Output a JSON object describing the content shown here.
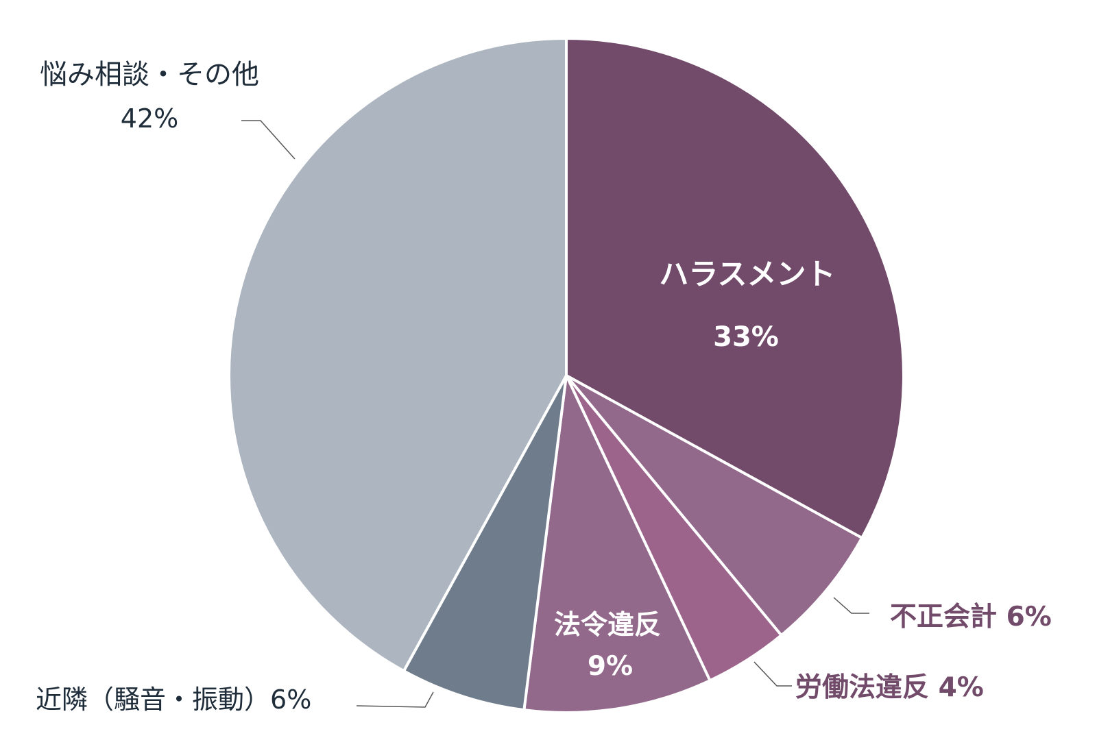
{
  "chart_data": {
    "type": "pie",
    "start": "12 o'clock",
    "direction": "clockwise",
    "slices": [
      {
        "label": "ハラスメント",
        "value": 33,
        "value_text": "33%",
        "color": "#724a6a",
        "text_color": "#ffffff",
        "label_position": "inside"
      },
      {
        "label": "不正会計",
        "value": 6,
        "value_text": "6%",
        "color": "#93698b",
        "text_color": "#724a6a",
        "label_position": "outside-right"
      },
      {
        "label": "労働法違反",
        "value": 4,
        "value_text": "4%",
        "color": "#9c648b",
        "text_color": "#724a6a",
        "label_position": "outside-bottom-right"
      },
      {
        "label": "法令違反",
        "value": 9,
        "value_text": "9%",
        "color": "#93698b",
        "text_color": "#ffffff",
        "label_position": "inside"
      },
      {
        "label": "近隣（騒音・振動）",
        "value": 6,
        "value_text": "6%",
        "color": "#6e7c8b",
        "text_color": "#1f2d3a",
        "label_position": "outside-bottom-left"
      },
      {
        "label": "悩み相談・その他",
        "value": 42,
        "value_text": "42%",
        "color": "#adb6c0",
        "text_color": "#1f2d3a",
        "label_position": "outside-top-left"
      }
    ]
  },
  "colors": {
    "separator": "#ffffff",
    "leader_line": "#555555"
  }
}
